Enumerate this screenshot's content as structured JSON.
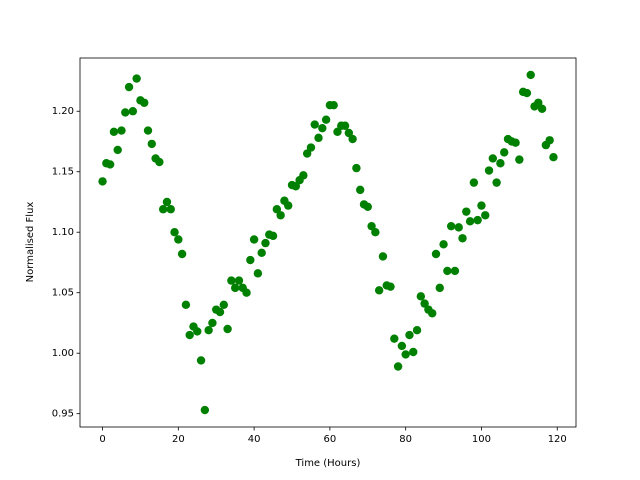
{
  "chart_data": {
    "type": "scatter",
    "xlabel": "Time (Hours)",
    "ylabel": "Normalised Flux",
    "color": "#008000",
    "x": [
      0,
      1,
      2,
      3,
      4,
      5,
      6,
      7,
      8,
      9,
      10,
      11,
      12,
      13,
      14,
      15,
      16,
      17,
      18,
      19,
      20,
      21,
      22,
      23,
      24,
      25,
      26,
      27,
      28,
      29,
      30,
      31,
      32,
      33,
      34,
      35,
      36,
      37,
      38,
      39,
      40,
      41,
      42,
      43,
      44,
      45,
      46,
      47,
      48,
      49,
      50,
      51,
      52,
      53,
      54,
      55,
      56,
      57,
      58,
      59,
      60,
      61,
      62,
      63,
      64,
      65,
      66,
      67,
      68,
      69,
      70,
      71,
      72,
      73,
      74,
      75,
      76,
      77,
      78,
      79,
      80,
      81,
      82,
      83,
      84,
      85,
      86,
      87,
      88,
      89,
      90,
      91,
      92,
      93,
      94,
      95,
      96,
      97,
      98,
      99,
      100,
      101,
      102,
      103,
      104,
      105,
      106,
      107,
      108,
      109,
      110,
      111,
      112,
      113,
      114,
      115,
      116,
      117,
      118,
      119
    ],
    "values": [
      1.142,
      1.157,
      1.156,
      1.183,
      1.168,
      1.184,
      1.199,
      1.22,
      1.2,
      1.227,
      1.209,
      1.207,
      1.184,
      1.173,
      1.161,
      1.158,
      1.119,
      1.125,
      1.119,
      1.1,
      1.094,
      1.082,
      1.04,
      1.015,
      1.022,
      1.018,
      0.994,
      0.953,
      1.019,
      1.025,
      1.036,
      1.034,
      1.04,
      1.02,
      1.06,
      1.054,
      1.06,
      1.054,
      1.05,
      1.077,
      1.094,
      1.066,
      1.083,
      1.091,
      1.098,
      1.097,
      1.119,
      1.114,
      1.126,
      1.122,
      1.139,
      1.138,
      1.143,
      1.147,
      1.165,
      1.17,
      1.189,
      1.178,
      1.186,
      1.193,
      1.205,
      1.205,
      1.183,
      1.188,
      1.188,
      1.182,
      1.177,
      1.153,
      1.135,
      1.123,
      1.121,
      1.105,
      1.1,
      1.052,
      1.08,
      1.056,
      1.055,
      1.012,
      0.989,
      1.006,
      0.999,
      1.015,
      1.001,
      1.019,
      1.047,
      1.041,
      1.036,
      1.033,
      1.082,
      1.054,
      1.09,
      1.068,
      1.105,
      1.068,
      1.104,
      1.095,
      1.117,
      1.109,
      1.141,
      1.11,
      1.122,
      1.114,
      1.151,
      1.161,
      1.141,
      1.157,
      1.166,
      1.177,
      1.175,
      1.174,
      1.16,
      1.216,
      1.215,
      1.23,
      1.204,
      1.207,
      1.202,
      1.172,
      1.176,
      1.162
    ],
    "xlim": [
      -5.95,
      124.95
    ],
    "ylim": [
      0.939,
      1.244
    ],
    "xticks": [
      0,
      20,
      40,
      60,
      80,
      100,
      120
    ],
    "yticks": [
      0.95,
      {
        "value": 1.0,
        "label": "1.00"
      },
      1.05,
      {
        "value": 1.1,
        "label": "1.10"
      },
      1.15,
      {
        "value": 1.2,
        "label": "1.20"
      }
    ]
  }
}
